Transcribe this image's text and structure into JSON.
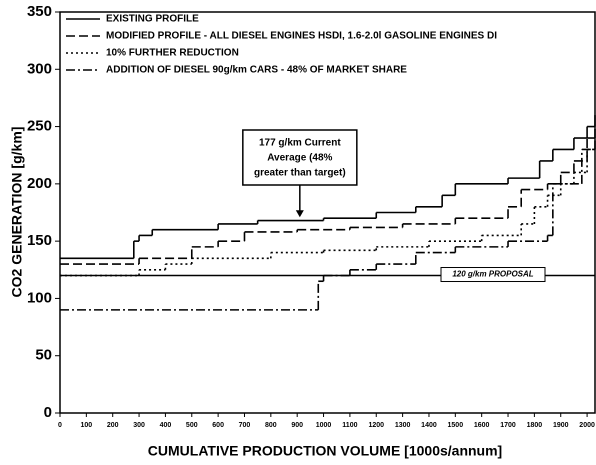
{
  "chart_data": {
    "type": "step",
    "xlabel": "CUMULATIVE PRODUCTION VOLUME [1000s/annum]",
    "ylabel": "CO2 GENERATION [g/km]",
    "xlim": [
      0,
      2030
    ],
    "ylim": [
      0,
      350
    ],
    "xticks": [
      0,
      100,
      200,
      300,
      400,
      500,
      600,
      700,
      800,
      900,
      1000,
      1100,
      1200,
      1300,
      1400,
      1500,
      1600,
      1700,
      1800,
      1900,
      2000
    ],
    "yticks": [
      0,
      50,
      100,
      150,
      200,
      250,
      300,
      350
    ],
    "legend": "upper left",
    "series": [
      {
        "name": "EXISTING PROFILE",
        "color": "#000000",
        "dash": "solid",
        "x": [
          0,
          280,
          300,
          350,
          600,
          750,
          1000,
          1200,
          1350,
          1450,
          1500,
          1700,
          1820,
          1870,
          1950,
          2000,
          2030
        ],
        "values": [
          135,
          150,
          155,
          160,
          165,
          168,
          170,
          175,
          180,
          190,
          200,
          205,
          220,
          230,
          240,
          250,
          260
        ]
      },
      {
        "name": "MODIFIED PROFILE - ALL DIESEL ENGINES HSDI, 1.6-2.0l GASOLINE ENGINES DI",
        "color": "#000000",
        "dash": "dashed",
        "x": [
          0,
          300,
          500,
          600,
          700,
          900,
          1100,
          1300,
          1500,
          1700,
          1750,
          1850,
          1900,
          1950,
          2000,
          2030
        ],
        "values": [
          130,
          135,
          145,
          150,
          158,
          160,
          162,
          165,
          170,
          180,
          195,
          200,
          210,
          220,
          240,
          250
        ]
      },
      {
        "name": "10% FURTHER REDUCTION",
        "color": "#000000",
        "dash": "dotted",
        "x": [
          0,
          300,
          400,
          500,
          800,
          1000,
          1200,
          1400,
          1600,
          1750,
          1800,
          1850,
          1900,
          1950,
          2000
        ],
        "values": [
          120,
          125,
          130,
          135,
          140,
          142,
          145,
          150,
          155,
          165,
          180,
          190,
          200,
          210,
          230
        ]
      },
      {
        "name": "ADDITION OF DIESEL 90g/km CARS - 48% OF MARKET SHARE",
        "color": "#000000",
        "dash": "dashdot",
        "x": [
          0,
          980,
          1000,
          1100,
          1200,
          1350,
          1500,
          1700,
          1850,
          1870,
          1980,
          2030
        ],
        "values": [
          90,
          115,
          120,
          125,
          130,
          140,
          145,
          150,
          155,
          200,
          230,
          240
        ]
      }
    ],
    "reference_line": {
      "value": 120,
      "label": "120 g/km PROPOSAL"
    },
    "annotation": {
      "lines": [
        "177 g/km Current",
        "Average (48%",
        "greater than target)"
      ],
      "x": 910,
      "y": 170
    }
  }
}
